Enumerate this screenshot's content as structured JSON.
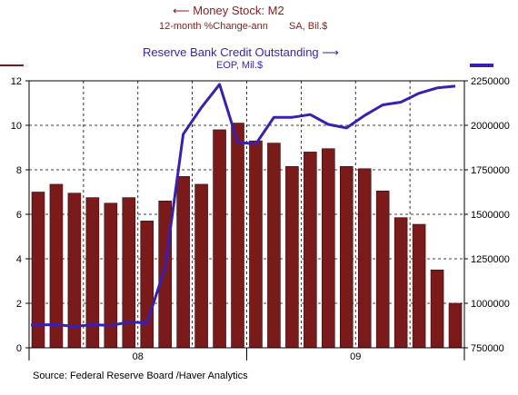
{
  "chart_data": {
    "type": "bar+line",
    "titles": {
      "left_main": "Money Stock: M2",
      "left_sub1": "12-month %Change-ann",
      "left_sub2": "SA, Bil.$",
      "right_main": "Reserve Bank Credit Outstanding",
      "right_sub": "EOP, Mil.$"
    },
    "left_axis": {
      "ticks": [
        "0",
        "2",
        "4",
        "6",
        "8",
        "10",
        "12"
      ],
      "ylim": [
        0,
        12
      ]
    },
    "right_axis": {
      "ticks": [
        "750000",
        "1000000",
        "1250000",
        "1500000",
        "1750000",
        "2000000",
        "2250000"
      ],
      "ylim": [
        750000,
        2250000
      ]
    },
    "x_labels": [
      "08",
      "09"
    ],
    "grid": true,
    "series": [
      {
        "name": "Money Stock: M2",
        "axis": "left",
        "type": "bar",
        "values": [
          7.0,
          7.35,
          6.95,
          6.75,
          6.5,
          6.75,
          5.7,
          6.6,
          7.7,
          7.35,
          9.8,
          10.1,
          9.3,
          9.2,
          8.15,
          8.8,
          8.95,
          8.15,
          8.05,
          7.05,
          5.85,
          5.55,
          3.5,
          2.0
        ],
        "color": "#7a1a1a"
      },
      {
        "name": "Reserve Bank Credit Outstanding",
        "axis": "right",
        "type": "line",
        "values": [
          878000,
          880000,
          870000,
          880000,
          875000,
          895000,
          890000,
          1200000,
          1950000,
          2100000,
          2230000,
          1905000,
          1895000,
          2045000,
          2045000,
          2060000,
          2005000,
          1985000,
          2055000,
          2115000,
          2130000,
          2180000,
          2210000,
          2220000
        ],
        "color": "#3a1fb0"
      }
    ],
    "source": "Source:  Federal Reserve Board /Haver Analytics"
  }
}
